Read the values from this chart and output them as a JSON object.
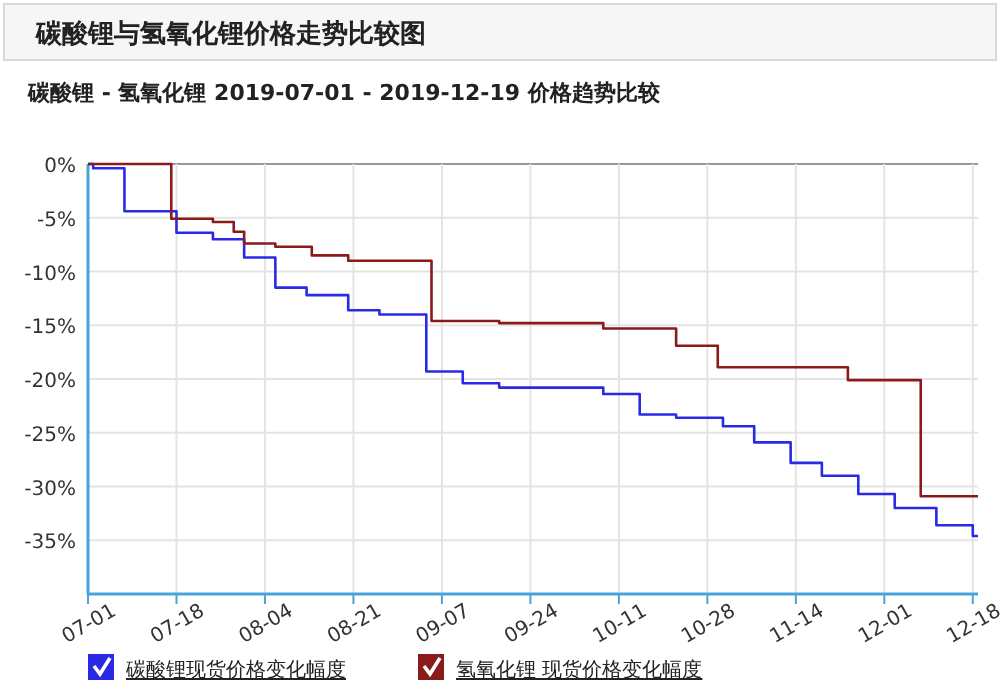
{
  "chart_data": {
    "type": "step",
    "title": "碳酸锂与氢氧化锂价格走势比较图",
    "subtitle": "碳酸锂 - 氢氧化锂 2019-07-01 - 2019-12-19 价格趋势比较",
    "series": [
      {
        "name": "碳酸锂现货价格变化幅度",
        "color": "#2a2ae6",
        "x": [
          "2019-07-01",
          "2019-07-02",
          "2019-07-08",
          "2019-07-18",
          "2019-07-25",
          "2019-07-31",
          "2019-08-06",
          "2019-08-12",
          "2019-08-20",
          "2019-08-26",
          "2019-09-04",
          "2019-09-11",
          "2019-09-18",
          "2019-10-08",
          "2019-10-15",
          "2019-10-22",
          "2019-10-31",
          "2019-11-06",
          "2019-11-13",
          "2019-11-19",
          "2019-11-26",
          "2019-12-03",
          "2019-12-11",
          "2019-12-18",
          "2019-12-19"
        ],
        "values": [
          0,
          -0.4,
          -4.4,
          -6.4,
          -7.0,
          -8.7,
          -11.5,
          -12.2,
          -13.6,
          -14.0,
          -19.3,
          -20.4,
          -20.8,
          -21.4,
          -23.3,
          -23.6,
          -24.4,
          -25.9,
          -27.8,
          -29.0,
          -30.7,
          -32.0,
          -33.6,
          -34.6,
          -34.6
        ]
      },
      {
        "name": "氢氧化锂 现货价格变化幅度",
        "color": "#8b1a1a",
        "x": [
          "2019-07-01",
          "2019-07-17",
          "2019-07-25",
          "2019-07-29",
          "2019-07-31",
          "2019-08-06",
          "2019-08-13",
          "2019-08-20",
          "2019-09-05",
          "2019-09-18",
          "2019-10-08",
          "2019-10-22",
          "2019-10-30",
          "2019-11-24",
          "2019-12-08",
          "2019-12-19"
        ],
        "values": [
          0,
          -5.1,
          -5.4,
          -6.3,
          -7.4,
          -7.7,
          -8.5,
          -9.0,
          -14.6,
          -14.8,
          -15.3,
          -16.9,
          -18.9,
          -20.1,
          -30.9,
          -30.9
        ]
      }
    ],
    "xlim": [
      "2019-07-01",
      "2019-12-19"
    ],
    "xticks": [
      {
        "value": "2019-07-01",
        "label": "07-01"
      },
      {
        "value": "2019-07-18",
        "label": "07-18"
      },
      {
        "value": "2019-08-04",
        "label": "08-04"
      },
      {
        "value": "2019-08-21",
        "label": "08-21"
      },
      {
        "value": "2019-09-07",
        "label": "09-07"
      },
      {
        "value": "2019-09-24",
        "label": "09-24"
      },
      {
        "value": "2019-10-11",
        "label": "10-11"
      },
      {
        "value": "2019-10-28",
        "label": "10-28"
      },
      {
        "value": "2019-11-14",
        "label": "11-14"
      },
      {
        "value": "2019-12-01",
        "label": "12-01"
      },
      {
        "value": "2019-12-18",
        "label": "12-18"
      }
    ],
    "ylim": [
      -40,
      0
    ],
    "yticks": [
      {
        "value": 0,
        "label": "0%"
      },
      {
        "value": -5,
        "label": "-5%"
      },
      {
        "value": -10,
        "label": "-10%"
      },
      {
        "value": -15,
        "label": "-15%"
      },
      {
        "value": -20,
        "label": "-20%"
      },
      {
        "value": -25,
        "label": "-25%"
      },
      {
        "value": -30,
        "label": "-30%"
      },
      {
        "value": -35,
        "label": "-35%"
      }
    ],
    "grid": true,
    "legend": "bottom"
  }
}
